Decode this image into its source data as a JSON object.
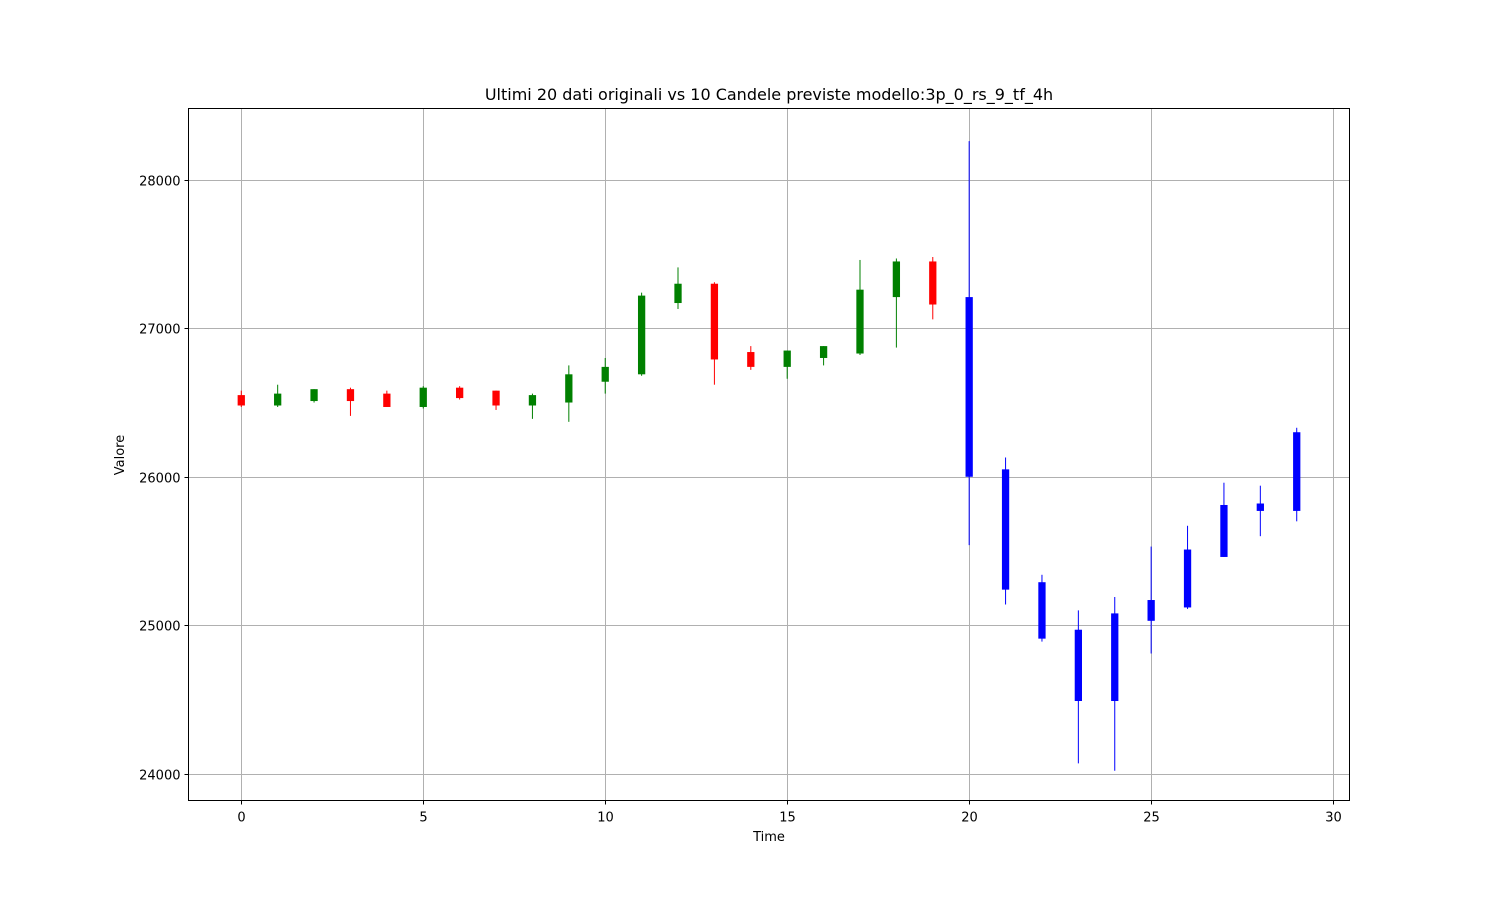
{
  "chart_data": {
    "type": "candlestick",
    "title": "Ultimi 20 dati originali vs 10 Candele previste modello:3p_0_rs_9_tf_4h",
    "xlabel": "Time",
    "ylabel": "Valore",
    "xlim": [
      -1.45,
      30.45
    ],
    "ylim": [
      23820,
      28480
    ],
    "xticks": [
      0,
      5,
      10,
      15,
      20,
      25,
      30
    ],
    "yticks": [
      24000,
      25000,
      26000,
      27000,
      28000
    ],
    "grid": true,
    "legend": "none",
    "colors": {
      "up": "#008000",
      "down": "#ff0000",
      "forecast": "#0000ff"
    },
    "candles": [
      {
        "x": 0,
        "open": 26550,
        "high": 26580,
        "low": 26470,
        "close": 26480,
        "color": "#ff0000"
      },
      {
        "x": 1,
        "open": 26480,
        "high": 26620,
        "low": 26470,
        "close": 26560,
        "color": "#008000"
      },
      {
        "x": 2,
        "open": 26510,
        "high": 26590,
        "low": 26500,
        "close": 26590,
        "color": "#008000"
      },
      {
        "x": 3,
        "open": 26590,
        "high": 26600,
        "low": 26410,
        "close": 26510,
        "color": "#ff0000"
      },
      {
        "x": 4,
        "open": 26560,
        "high": 26580,
        "low": 26470,
        "close": 26470,
        "color": "#ff0000"
      },
      {
        "x": 5,
        "open": 26470,
        "high": 26610,
        "low": 26460,
        "close": 26600,
        "color": "#008000"
      },
      {
        "x": 6,
        "open": 26600,
        "high": 26610,
        "low": 26520,
        "close": 26530,
        "color": "#ff0000"
      },
      {
        "x": 7,
        "open": 26580,
        "high": 26580,
        "low": 26450,
        "close": 26480,
        "color": "#ff0000"
      },
      {
        "x": 8,
        "open": 26480,
        "high": 26560,
        "low": 26390,
        "close": 26550,
        "color": "#008000"
      },
      {
        "x": 9,
        "open": 26500,
        "high": 26750,
        "low": 26370,
        "close": 26690,
        "color": "#008000"
      },
      {
        "x": 10,
        "open": 26640,
        "high": 26800,
        "low": 26560,
        "close": 26740,
        "color": "#008000"
      },
      {
        "x": 11,
        "open": 26690,
        "high": 27240,
        "low": 26680,
        "close": 27220,
        "color": "#008000"
      },
      {
        "x": 12,
        "open": 27170,
        "high": 27410,
        "low": 27130,
        "close": 27300,
        "color": "#008000"
      },
      {
        "x": 13,
        "open": 27300,
        "high": 27310,
        "low": 26620,
        "close": 26790,
        "color": "#ff0000"
      },
      {
        "x": 14,
        "open": 26840,
        "high": 26880,
        "low": 26720,
        "close": 26740,
        "color": "#ff0000"
      },
      {
        "x": 15,
        "open": 26740,
        "high": 26850,
        "low": 26660,
        "close": 26850,
        "color": "#008000"
      },
      {
        "x": 16,
        "open": 26800,
        "high": 26880,
        "low": 26750,
        "close": 26880,
        "color": "#008000"
      },
      {
        "x": 17,
        "open": 26830,
        "high": 27460,
        "low": 26820,
        "close": 27260,
        "color": "#008000"
      },
      {
        "x": 18,
        "open": 27210,
        "high": 27470,
        "low": 26870,
        "close": 27450,
        "color": "#008000"
      },
      {
        "x": 19,
        "open": 27450,
        "high": 27480,
        "low": 27060,
        "close": 27160,
        "color": "#ff0000"
      },
      {
        "x": 20,
        "open": 27210,
        "high": 28260,
        "low": 25540,
        "close": 26000,
        "color": "#0000ff"
      },
      {
        "x": 21,
        "open": 26050,
        "high": 26130,
        "low": 25140,
        "close": 25240,
        "color": "#0000ff"
      },
      {
        "x": 22,
        "open": 25290,
        "high": 25340,
        "low": 24890,
        "close": 24910,
        "color": "#0000ff"
      },
      {
        "x": 23,
        "open": 24970,
        "high": 25100,
        "low": 24070,
        "close": 24490,
        "color": "#0000ff"
      },
      {
        "x": 24,
        "open": 25080,
        "high": 25190,
        "low": 24020,
        "close": 24490,
        "color": "#0000ff"
      },
      {
        "x": 25,
        "open": 25030,
        "high": 25530,
        "low": 24810,
        "close": 25170,
        "color": "#0000ff"
      },
      {
        "x": 26,
        "open": 25120,
        "high": 25670,
        "low": 25110,
        "close": 25510,
        "color": "#0000ff"
      },
      {
        "x": 27,
        "open": 25460,
        "high": 25960,
        "low": 25460,
        "close": 25810,
        "color": "#0000ff"
      },
      {
        "x": 28,
        "open": 25770,
        "high": 25940,
        "low": 25600,
        "close": 25820,
        "color": "#0000ff"
      },
      {
        "x": 29,
        "open": 25770,
        "high": 26330,
        "low": 25700,
        "close": 26300,
        "color": "#0000ff"
      }
    ]
  }
}
